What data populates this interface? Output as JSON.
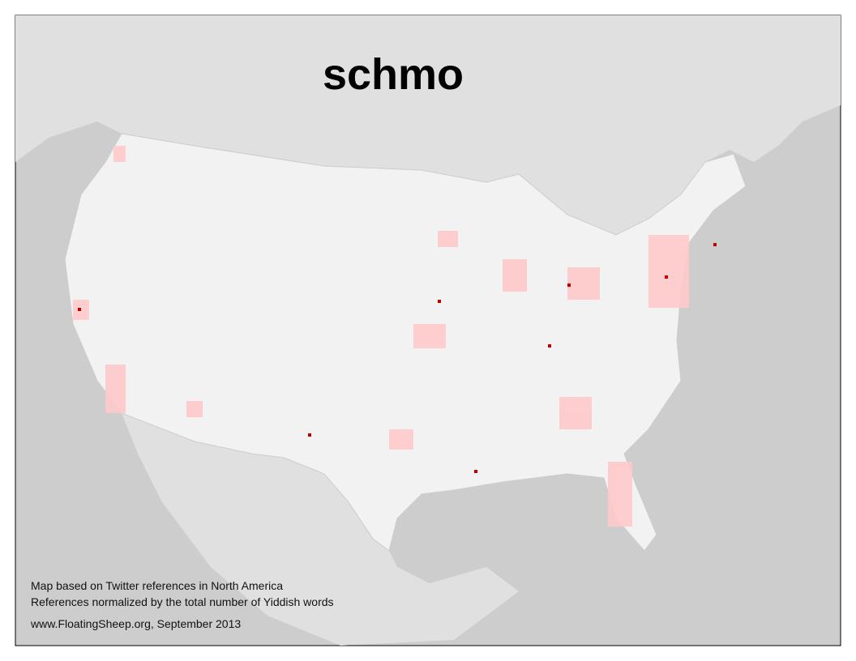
{
  "title": "schmo",
  "notes": [
    "Map based on Twitter references in North America",
    "References normalized by the total number of Yiddish words"
  ],
  "credit": "www.FloatingSheep.org, September 2013"
}
